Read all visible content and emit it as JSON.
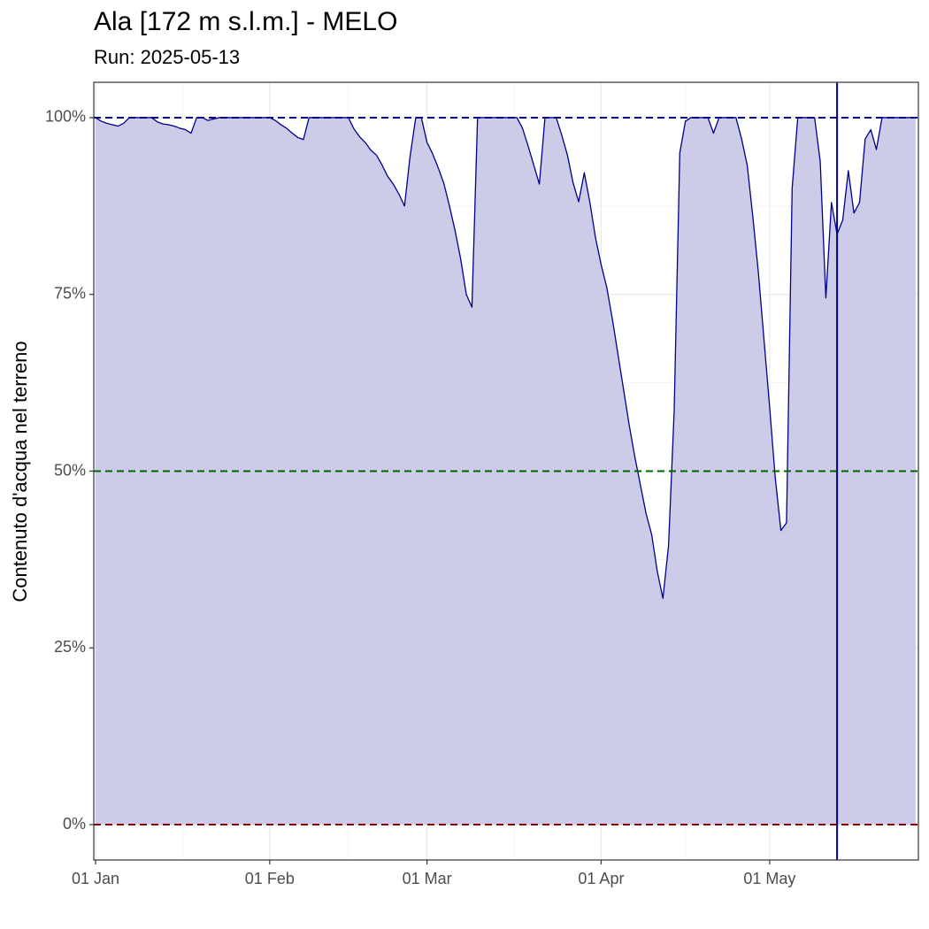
{
  "chart_data": {
    "type": "area",
    "title": "Ala [172 m s.l.m.] - MELO",
    "subtitle": "Run: 2025-05-13",
    "y_label": "Contenuto d'acqua nel terreno",
    "fill_color": "#cccce8",
    "line_color": "#00008b",
    "grid": true,
    "xlim": [
      "01-01",
      "05-27"
    ],
    "xticks": [
      {
        "value": "01-01",
        "label": "01 Jan"
      },
      {
        "value": "02-01",
        "label": "01 Feb"
      },
      {
        "value": "03-01",
        "label": "01 Mar"
      },
      {
        "value": "04-01",
        "label": "01 Apr"
      },
      {
        "value": "05-01",
        "label": "01 May"
      }
    ],
    "ylim": [
      -5,
      105
    ],
    "yticks": [
      {
        "value": 0,
        "label": "0%"
      },
      {
        "value": 25,
        "label": "25%"
      },
      {
        "value": 50,
        "label": "50%"
      },
      {
        "value": 75,
        "label": "75%"
      },
      {
        "value": 100,
        "label": "100%"
      }
    ],
    "reference_lines": [
      {
        "value": 100,
        "color": "#00008b"
      },
      {
        "value": 50,
        "color": "#006400"
      },
      {
        "value": 0,
        "color": "#8b0000"
      }
    ],
    "vline": {
      "x": "05-13",
      "color": "#00008b"
    },
    "x": [
      "01-01",
      "01-02",
      "01-03",
      "01-04",
      "01-05",
      "01-06",
      "01-07",
      "01-08",
      "01-09",
      "01-10",
      "01-11",
      "01-12",
      "01-13",
      "01-14",
      "01-15",
      "01-16",
      "01-17",
      "01-18",
      "01-19",
      "01-20",
      "01-21",
      "01-22",
      "01-23",
      "01-24",
      "01-25",
      "01-26",
      "01-27",
      "01-28",
      "01-29",
      "01-30",
      "01-31",
      "02-01",
      "02-02",
      "02-03",
      "02-04",
      "02-05",
      "02-06",
      "02-07",
      "02-08",
      "02-09",
      "02-10",
      "02-11",
      "02-12",
      "02-13",
      "02-14",
      "02-15",
      "02-16",
      "02-17",
      "02-18",
      "02-19",
      "02-20",
      "02-21",
      "02-22",
      "02-23",
      "02-24",
      "02-25",
      "02-26",
      "02-27",
      "02-28",
      "03-01",
      "03-02",
      "03-03",
      "03-04",
      "03-05",
      "03-06",
      "03-07",
      "03-08",
      "03-09",
      "03-10",
      "03-11",
      "03-12",
      "03-13",
      "03-14",
      "03-15",
      "03-16",
      "03-17",
      "03-18",
      "03-19",
      "03-20",
      "03-21",
      "03-22",
      "03-23",
      "03-24",
      "03-25",
      "03-26",
      "03-27",
      "03-28",
      "03-29",
      "03-30",
      "03-31",
      "04-01",
      "04-02",
      "04-03",
      "04-04",
      "04-05",
      "04-06",
      "04-07",
      "04-08",
      "04-09",
      "04-10",
      "04-11",
      "04-12",
      "04-13",
      "04-14",
      "04-15",
      "04-16",
      "04-17",
      "04-18",
      "04-19",
      "04-20",
      "04-21",
      "04-22",
      "04-23",
      "04-24",
      "04-25",
      "04-26",
      "04-27",
      "04-28",
      "04-29",
      "04-30",
      "05-01",
      "05-02",
      "05-03",
      "05-04",
      "05-05",
      "05-06",
      "05-07",
      "05-08",
      "05-09",
      "05-10",
      "05-11",
      "05-12",
      "05-13",
      "05-14",
      "05-15",
      "05-16",
      "05-17",
      "05-18",
      "05-19",
      "05-20",
      "05-21",
      "05-22",
      "05-23",
      "05-24",
      "05-25",
      "05-26",
      "05-27"
    ],
    "values": [
      100,
      99.5,
      99.2,
      99,
      98.8,
      99.2,
      100,
      100,
      100,
      100,
      100,
      99.4,
      99.1,
      99,
      98.8,
      98.5,
      98.3,
      97.8,
      100,
      100,
      99.6,
      99.8,
      100,
      100,
      100,
      100,
      100,
      100,
      100,
      100,
      100,
      100,
      99.6,
      99,
      98.5,
      97.8,
      97.2,
      96.9,
      100,
      100,
      100,
      100,
      100,
      100,
      100,
      100,
      98.4,
      97.3,
      96.5,
      95.4,
      94.7,
      93.3,
      91.7,
      90.6,
      89.2,
      87.5,
      94.6,
      100,
      100,
      96.5,
      94.9,
      92.9,
      90.7,
      87.5,
      84,
      80,
      75,
      73.2,
      100,
      100,
      100,
      100,
      100,
      100,
      100,
      100,
      98.5,
      96,
      93.3,
      90.6,
      100,
      100,
      100,
      97.5,
      94.7,
      90.8,
      88.1,
      92.2,
      88,
      83,
      79.2,
      76,
      71.5,
      66.5,
      61.5,
      56.5,
      52,
      48,
      44,
      41,
      35.8,
      32,
      39.5,
      58.5,
      95,
      99.5,
      100,
      100,
      100,
      100,
      97.8,
      100,
      100,
      100,
      100,
      97,
      93.3,
      86,
      78,
      68.5,
      59,
      49,
      41.6,
      42.7,
      90,
      100,
      100,
      100,
      100,
      93.8,
      74.5,
      88,
      83.5,
      85.5,
      92.5,
      86.5,
      88,
      97,
      98.3,
      95.5,
      100,
      100,
      100,
      100,
      100,
      100,
      100
    ]
  }
}
